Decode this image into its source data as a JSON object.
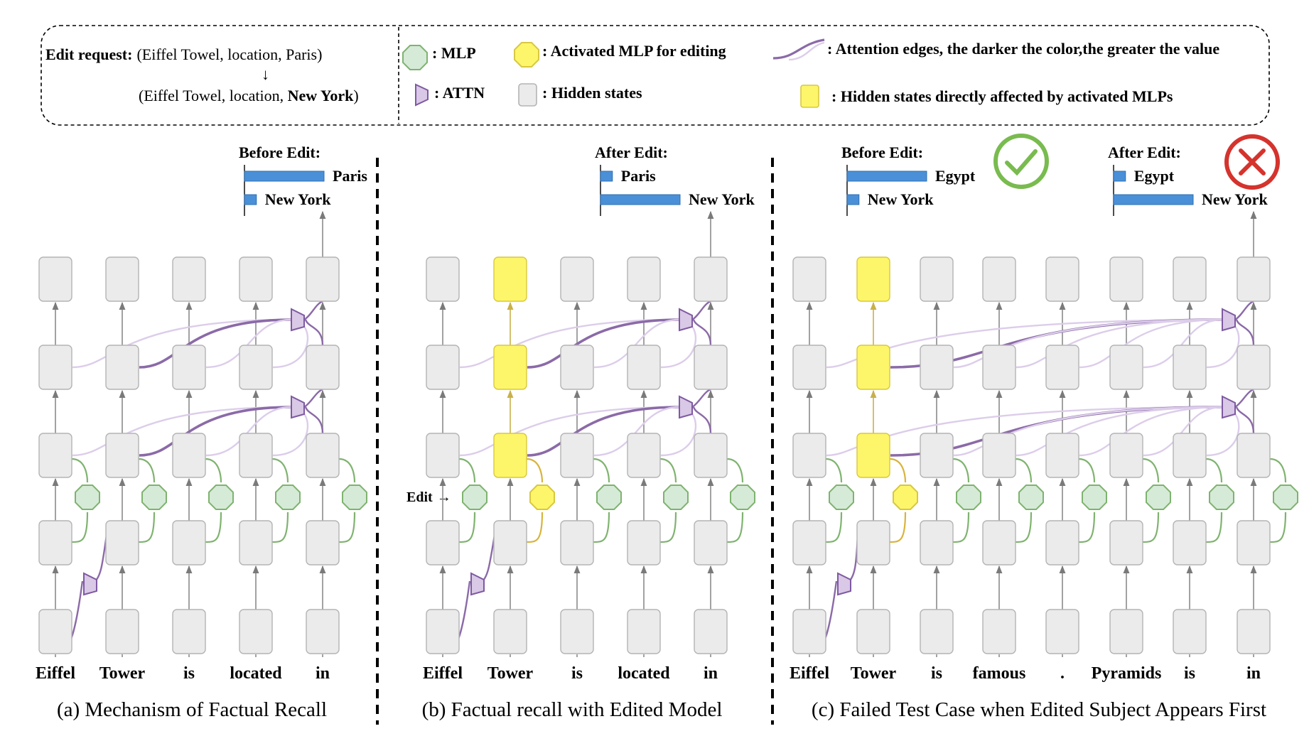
{
  "legend": {
    "edit_request_label": "Edit request:",
    "edit_request_original": "(Eiffel Towel, location, Paris)",
    "edit_arrow": "↓",
    "edit_request_new_prefix": "(Eiffel Towel, location, ",
    "edit_request_new_object": "New York",
    "edit_request_new_suffix": ")",
    "mlp": ": MLP",
    "activated_mlp": ": Activated MLP for editing",
    "attention_edges": ": Attention edges, the darker the color,the greater the value",
    "attn": ": ATTN",
    "hidden_states": ": Hidden states",
    "affected_states": ": Hidden states directly affected by activated MLPs"
  },
  "colors": {
    "hidden_state": "#ebebeb",
    "hidden_state_border": "#b4b4b4",
    "highlight": "#fdf66a",
    "highlight_border": "#d8c840",
    "mlp_fill": "#d6ead8",
    "mlp_border": "#7fb36f",
    "attn_fill": "#d9c8e6",
    "attn_border": "#7e5aa1",
    "bar": "#4a90d8",
    "check": "#79bb4f",
    "cross": "#d5332d"
  },
  "panels": [
    {
      "caption": "(a) Mechanism of Factual Recall",
      "tokens": [
        "Eiffel",
        "Tower",
        "is",
        "located",
        "in"
      ],
      "edit_label": "",
      "chart": {
        "title": "Before Edit:",
        "bars": [
          {
            "label": "Paris",
            "value": 1.0
          },
          {
            "label": "New York",
            "value": 0.15
          }
        ],
        "status": "",
        "status_icon": ""
      }
    },
    {
      "caption": "(b) Factual recall with Edited Model",
      "tokens": [
        "Eiffel",
        "Tower",
        "is",
        "located",
        "in"
      ],
      "edit_label": "Edit",
      "chart": {
        "title": "After Edit:",
        "bars": [
          {
            "label": "Paris",
            "value": 0.15
          },
          {
            "label": "New York",
            "value": 1.0
          }
        ],
        "status": "",
        "status_icon": ""
      }
    },
    {
      "caption": "(c) Failed Test Case when Edited Subject Appears First",
      "tokens": [
        "Eiffel",
        "Tower",
        "is",
        "famous",
        ".",
        "Pyramids",
        "is",
        "in"
      ],
      "edit_label": "",
      "charts": [
        {
          "title": "Before Edit:",
          "bars": [
            {
              "label": "Egypt",
              "value": 1.0
            },
            {
              "label": "New York",
              "value": 0.15
            }
          ],
          "status_icon": "check-circle-icon"
        },
        {
          "title": "After Edit:",
          "bars": [
            {
              "label": "Egypt",
              "value": 0.15
            },
            {
              "label": "New York",
              "value": 1.0
            }
          ],
          "status_icon": "cross-circle-icon"
        }
      ]
    }
  ]
}
